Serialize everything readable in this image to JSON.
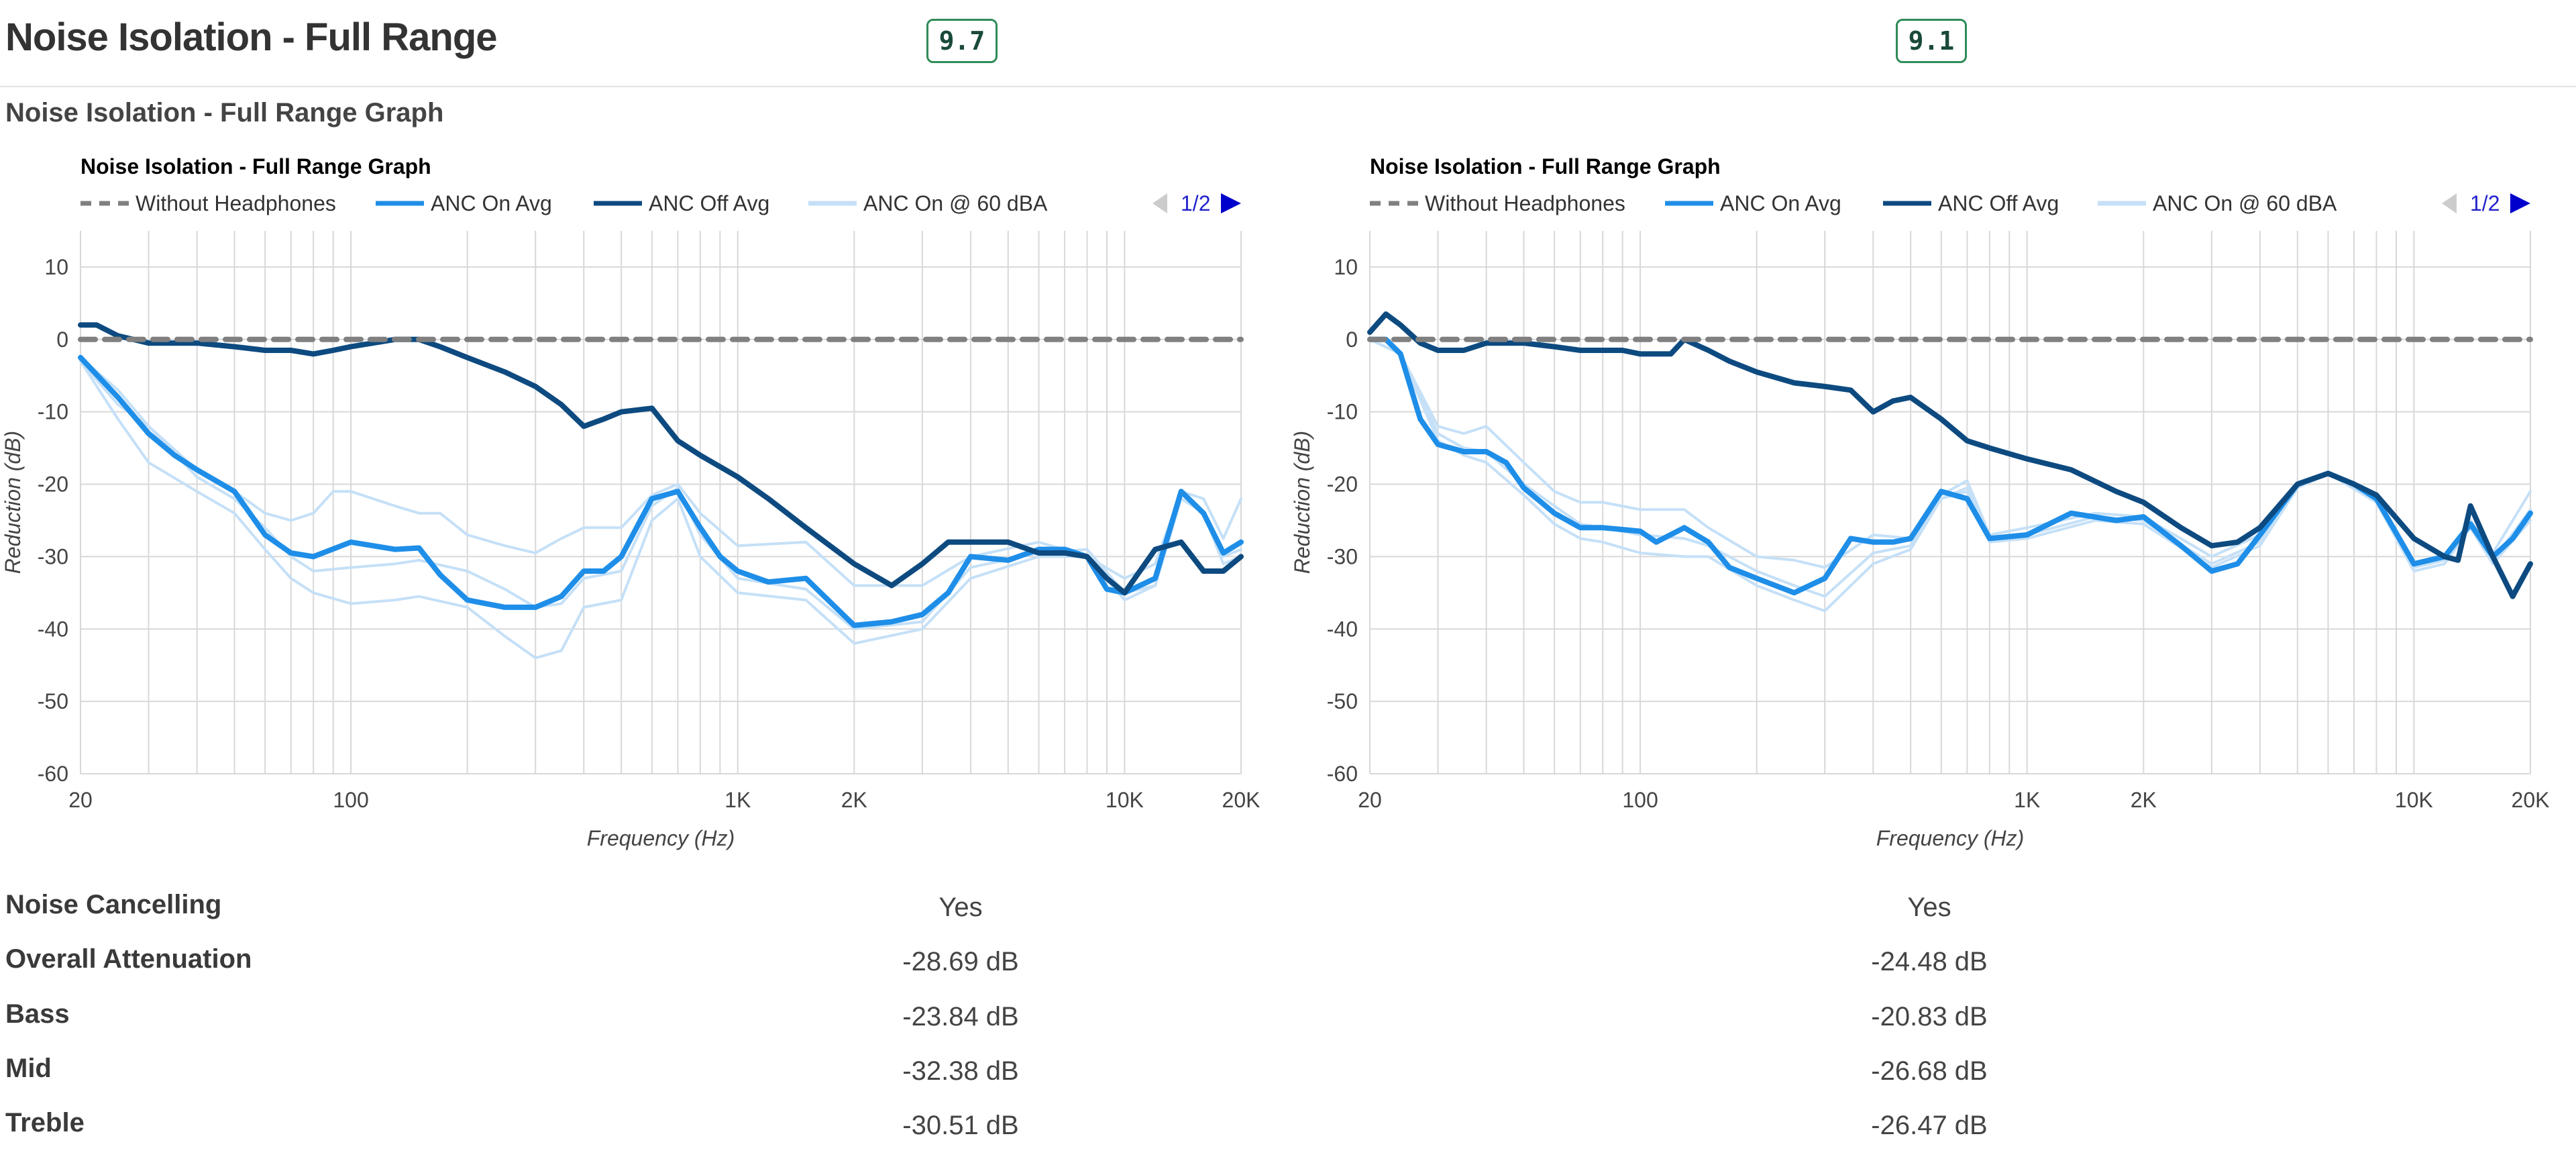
{
  "header": {
    "title": "Noise Isolation - Full Range",
    "scores": [
      "9.7",
      "9.1"
    ]
  },
  "section_title": "Noise Isolation - Full Range Graph",
  "pager": "1/2",
  "legend_colors": {
    "Without Headphones": "#808080",
    "ANC On Avg": "#1e8ee8",
    "ANC Off Avg": "#0d4a80",
    "ANC On @ 60 dBA": "#c5e0f7"
  },
  "chart_data": [
    {
      "type": "line",
      "title": "Noise Isolation - Full Range Graph",
      "xlabel": "Frequency (Hz)",
      "ylabel": "Reduction (dB)",
      "xscale": "log",
      "xlim": [
        20,
        20000
      ],
      "ylim": [
        -60,
        15
      ],
      "xticks": [
        20,
        100,
        1000,
        2000,
        10000,
        20000
      ],
      "xtick_labels": [
        "20",
        "100",
        "1K",
        "2K",
        "10K",
        "20K"
      ],
      "yticks": [
        10,
        0,
        -10,
        -20,
        -30,
        -40,
        -50,
        -60
      ],
      "grid": true,
      "legend": "top-left",
      "series": [
        {
          "name": "Without Headphones",
          "style": "dashed",
          "color": "#808080",
          "x": [
            20,
            20000
          ],
          "y": [
            0,
            0
          ]
        },
        {
          "name": "ANC On Avg",
          "color": "#1e8ee8",
          "x": [
            20,
            25,
            30,
            35,
            40,
            50,
            60,
            70,
            80,
            100,
            130,
            150,
            170,
            200,
            250,
            300,
            350,
            400,
            450,
            500,
            600,
            700,
            800,
            900,
            1000,
            1200,
            1500,
            2000,
            2500,
            3000,
            3500,
            4000,
            5000,
            6000,
            7000,
            8000,
            9000,
            10000,
            12000,
            14000,
            16000,
            18000,
            20000
          ],
          "y": [
            -2.5,
            -8,
            -13,
            -16,
            -18,
            -21,
            -27,
            -29.5,
            -30,
            -28,
            -29,
            -28.8,
            -32.5,
            -36,
            -37,
            -37,
            -35.5,
            -32,
            -32,
            -30,
            -22,
            -21,
            -26,
            -30,
            -32,
            -33.5,
            -33,
            -39.5,
            -39,
            -38,
            -35,
            -30,
            -30.5,
            -29,
            -29,
            -30,
            -34.5,
            -35,
            -33,
            -21,
            -24,
            -29.5,
            -28
          ]
        },
        {
          "name": "ANC Off Avg",
          "color": "#0d4a80",
          "x": [
            20,
            22,
            25,
            30,
            35,
            40,
            50,
            60,
            70,
            80,
            90,
            100,
            130,
            150,
            170,
            200,
            250,
            300,
            350,
            400,
            450,
            500,
            600,
            700,
            800,
            1000,
            1200,
            1500,
            2000,
            2500,
            3000,
            3500,
            4000,
            5000,
            6000,
            7000,
            8000,
            9000,
            10000,
            12000,
            14000,
            16000,
            18000,
            20000
          ],
          "y": [
            2,
            2,
            0.5,
            -0.5,
            -0.5,
            -0.5,
            -1,
            -1.5,
            -1.5,
            -2,
            -1.5,
            -1,
            0,
            0,
            -1,
            -2.5,
            -4.5,
            -6.5,
            -9,
            -12,
            -11,
            -10,
            -9.5,
            -14,
            -16,
            -19,
            -22,
            -26,
            -31,
            -34,
            -31,
            -28,
            -28,
            -28,
            -29.5,
            -29.5,
            -30,
            -33,
            -35,
            -29,
            -28,
            -32,
            -32,
            -30
          ]
        },
        {
          "name": "ANC On @ 60 dBA",
          "color": "#c5e0f7",
          "x": [
            20,
            25,
            30,
            40,
            50,
            60,
            70,
            80,
            90,
            100,
            130,
            150,
            170,
            200,
            250,
            300,
            350,
            400,
            500,
            600,
            700,
            800,
            1000,
            1500,
            2000,
            3000,
            4000,
            6000,
            8000,
            10000,
            12000,
            14000,
            16000,
            18000,
            20000
          ],
          "y": [
            -3,
            -9,
            -12,
            -18,
            -21,
            -24,
            -25,
            -24,
            -21,
            -21,
            -23,
            -24,
            -24,
            -27,
            -28.5,
            -29.5,
            -27.5,
            -26,
            -26,
            -21.5,
            -20,
            -24,
            -28.5,
            -28,
            -34,
            -34,
            -30,
            -28,
            -30,
            -33,
            -31,
            -21,
            -22,
            -27.5,
            -22
          ]
        },
        {
          "name": "ANC On @ 60 dBA",
          "color": "#c5e0f7",
          "x": [
            20,
            25,
            30,
            40,
            50,
            60,
            70,
            80,
            100,
            130,
            150,
            200,
            250,
            300,
            350,
            400,
            500,
            600,
            700,
            800,
            1000,
            1500,
            2000,
            3000,
            4000,
            6000,
            8000,
            10000,
            12000,
            14000,
            16000,
            18000,
            20000
          ],
          "y": [
            -3,
            -11,
            -17,
            -21,
            -24,
            -29,
            -33,
            -35,
            -36.5,
            -36,
            -35.5,
            -37,
            -41,
            -44,
            -43,
            -37,
            -36,
            -25,
            -22,
            -30,
            -35,
            -36,
            -42,
            -40,
            -33,
            -30,
            -30,
            -36,
            -34,
            -22,
            -24,
            -31,
            -30
          ]
        },
        {
          "name": "ANC On @ 60 dBA",
          "color": "#c5e0f7",
          "x": [
            20,
            25,
            30,
            40,
            50,
            60,
            70,
            80,
            100,
            130,
            150,
            200,
            250,
            300,
            350,
            400,
            500,
            600,
            700,
            800,
            1000,
            1500,
            2000,
            3000,
            4000,
            6000,
            8000,
            10000,
            12000,
            14000,
            16000,
            18000,
            20000
          ],
          "y": [
            -2.5,
            -7,
            -12,
            -19,
            -22,
            -26,
            -30,
            -32,
            -31.5,
            -31,
            -30.5,
            -32,
            -34.5,
            -37,
            -36.5,
            -33,
            -32,
            -23,
            -20.5,
            -27,
            -33,
            -34.5,
            -40,
            -39,
            -31.5,
            -29.5,
            -29,
            -35,
            -34,
            -21,
            -24,
            -30,
            -29
          ]
        }
      ]
    },
    {
      "type": "line",
      "title": "Noise Isolation - Full Range Graph",
      "xlabel": "Frequency (Hz)",
      "ylabel": "Reduction (dB)",
      "xscale": "log",
      "xlim": [
        20,
        20000
      ],
      "ylim": [
        -60,
        15
      ],
      "xticks": [
        20,
        100,
        1000,
        2000,
        10000,
        20000
      ],
      "xtick_labels": [
        "20",
        "100",
        "1K",
        "2K",
        "10K",
        "20K"
      ],
      "yticks": [
        10,
        0,
        -10,
        -20,
        -30,
        -40,
        -50,
        -60
      ],
      "grid": true,
      "legend": "top-left",
      "series": [
        {
          "name": "Without Headphones",
          "style": "dashed",
          "color": "#808080",
          "x": [
            20,
            20000
          ],
          "y": [
            0,
            0
          ]
        },
        {
          "name": "ANC On Avg",
          "color": "#1e8ee8",
          "x": [
            20,
            22,
            24,
            27,
            30,
            35,
            40,
            45,
            50,
            60,
            70,
            80,
            100,
            110,
            130,
            150,
            170,
            200,
            250,
            300,
            350,
            400,
            450,
            500,
            600,
            700,
            800,
            1000,
            1300,
            1700,
            2000,
            2500,
            3000,
            3500,
            4000,
            5000,
            6000,
            7000,
            8000,
            10000,
            12000,
            14000,
            16000,
            18000,
            20000
          ],
          "y": [
            0,
            0,
            -2,
            -11,
            -14.5,
            -15.5,
            -15.5,
            -17,
            -20.5,
            -24,
            -26,
            -26,
            -26.5,
            -28,
            -26,
            -28,
            -31.5,
            -33,
            -35,
            -33,
            -27.5,
            -28,
            -28,
            -27.5,
            -21,
            -22,
            -27.5,
            -27,
            -24,
            -25,
            -24.5,
            -28.5,
            -32,
            -31,
            -27,
            -20,
            -18.5,
            -20,
            -22,
            -31,
            -30,
            -25.5,
            -30,
            -27.5,
            -24
          ]
        },
        {
          "name": "ANC Off Avg",
          "color": "#0d4a80",
          "x": [
            20,
            22,
            24,
            27,
            30,
            35,
            40,
            50,
            60,
            70,
            80,
            90,
            100,
            120,
            130,
            150,
            170,
            200,
            250,
            300,
            350,
            400,
            450,
            500,
            600,
            700,
            800,
            1000,
            1300,
            1700,
            2000,
            2500,
            3000,
            3500,
            4000,
            5000,
            6000,
            7000,
            8000,
            10000,
            12000,
            13000,
            14000,
            16000,
            18000,
            20000
          ],
          "y": [
            1,
            3.5,
            2,
            -0.5,
            -1.5,
            -1.5,
            -0.5,
            -0.5,
            -1,
            -1.5,
            -1.5,
            -1.5,
            -2,
            -2,
            0,
            -1.5,
            -3,
            -4.5,
            -6,
            -6.5,
            -7,
            -10,
            -8.5,
            -8,
            -11,
            -14,
            -15,
            -16.5,
            -18,
            -21,
            -22.5,
            -26,
            -28.5,
            -28,
            -26,
            -20,
            -18.5,
            -20,
            -21.5,
            -27.5,
            -30,
            -30.5,
            -23,
            -30,
            -35.5,
            -31
          ]
        },
        {
          "name": "ANC On @ 60 dBA",
          "color": "#c5e0f7",
          "x": [
            20,
            24,
            30,
            35,
            40,
            50,
            60,
            70,
            80,
            100,
            130,
            150,
            200,
            250,
            300,
            400,
            500,
            600,
            700,
            800,
            1000,
            1500,
            2000,
            3000,
            4000,
            5000,
            6000,
            8000,
            10000,
            12000,
            14000,
            16000,
            20000
          ],
          "y": [
            0,
            -2,
            -12,
            -13,
            -12,
            -17,
            -21,
            -22.5,
            -22.5,
            -23.5,
            -23.5,
            -26,
            -30,
            -30.5,
            -31.5,
            -27,
            -27.5,
            -21.5,
            -19.5,
            -27,
            -26,
            -24,
            -24.5,
            -30,
            -27,
            -20,
            -18.5,
            -21.5,
            -31,
            -30,
            -25,
            -29.5,
            -21
          ]
        },
        {
          "name": "ANC On @ 60 dBA",
          "color": "#c5e0f7",
          "x": [
            20,
            24,
            30,
            35,
            40,
            50,
            60,
            70,
            80,
            100,
            130,
            150,
            200,
            250,
            300,
            400,
            500,
            600,
            700,
            800,
            1000,
            1500,
            2000,
            3000,
            4000,
            5000,
            6000,
            8000,
            10000,
            12000,
            14000,
            16000,
            20000
          ],
          "y": [
            0,
            -2,
            -14,
            -16,
            -17,
            -21.5,
            -25.5,
            -27.5,
            -28,
            -29.5,
            -30,
            -30,
            -34,
            -36,
            -37.5,
            -31,
            -29,
            -22,
            -21,
            -28,
            -27.5,
            -25,
            -25.5,
            -31.5,
            -28.5,
            -20.5,
            -18.5,
            -22.5,
            -32,
            -31,
            -26,
            -31,
            -25
          ]
        },
        {
          "name": "ANC On @ 60 dBA",
          "color": "#c5e0f7",
          "x": [
            20,
            24,
            30,
            35,
            40,
            50,
            60,
            70,
            80,
            100,
            130,
            150,
            200,
            250,
            300,
            400,
            500,
            600,
            700,
            800,
            1000,
            1500,
            2000,
            3000,
            4000,
            5000,
            6000,
            8000,
            10000,
            12000,
            14000,
            16000,
            20000
          ],
          "y": [
            0,
            -2,
            -13,
            -15,
            -15.5,
            -20,
            -23,
            -25.5,
            -26,
            -27,
            -27.5,
            -28.5,
            -32,
            -34,
            -35.5,
            -29.5,
            -28.5,
            -22,
            -20.5,
            -27.5,
            -27,
            -24.5,
            -25,
            -31,
            -28,
            -20,
            -18.5,
            -22,
            -31.5,
            -30.5,
            -25.5,
            -30.5,
            -23.5
          ]
        }
      ]
    }
  ],
  "stats": [
    {
      "label": "Noise Cancelling",
      "left": "Yes",
      "right": "Yes"
    },
    {
      "label": "Overall Attenuation",
      "left": "-28.69 dB",
      "right": "-24.48 dB"
    },
    {
      "label": "Bass",
      "left": "-23.84 dB",
      "right": "-20.83 dB"
    },
    {
      "label": "Mid",
      "left": "-32.38 dB",
      "right": "-26.68 dB"
    },
    {
      "label": "Treble",
      "left": "-30.51 dB",
      "right": "-26.47 dB"
    }
  ]
}
